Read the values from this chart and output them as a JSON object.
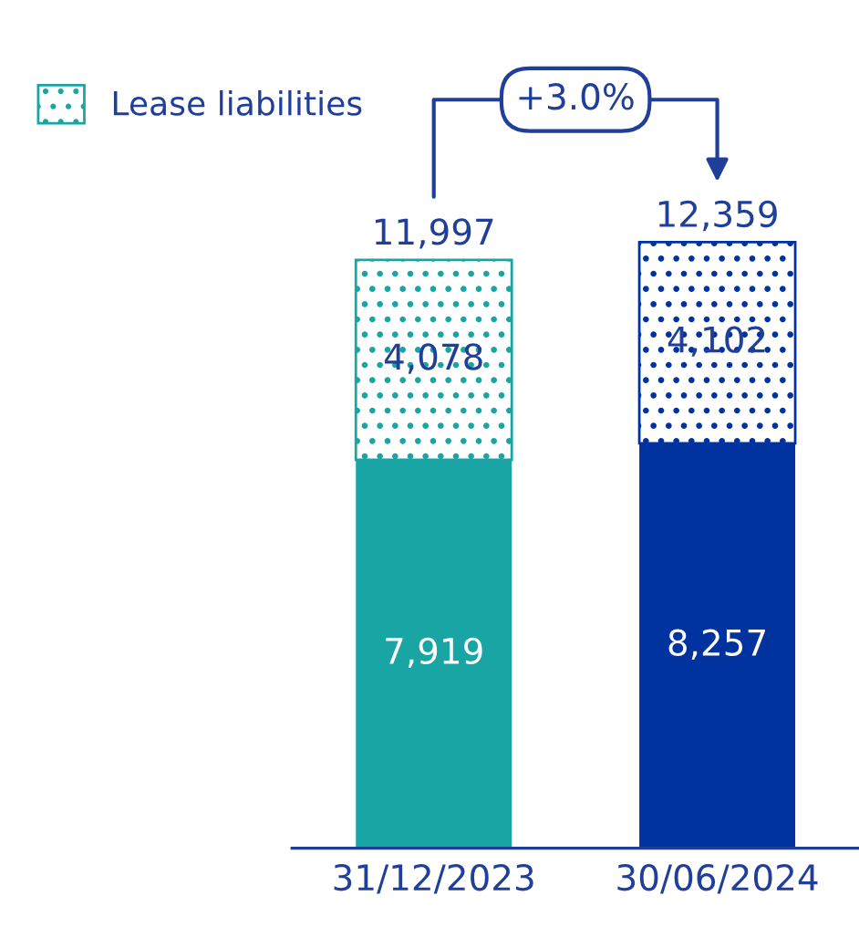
{
  "chart_data": {
    "type": "bar",
    "stacked": true,
    "categories": [
      "31/12/2023",
      "30/06/2024"
    ],
    "series": [
      {
        "colors": [
          "#1aa5a5",
          "#0033a0"
        ],
        "values": [
          7919,
          8257
        ],
        "value_labels": [
          "7,919",
          "8,257"
        ]
      },
      {
        "name": "Lease liabilities",
        "colors": [
          "#1aa5a5",
          "#0033a0"
        ],
        "values": [
          4078,
          4102
        ],
        "value_labels": [
          "4,078",
          "4,102"
        ]
      }
    ],
    "totals": [
      "11,997",
      "12,359"
    ],
    "legend": "top left",
    "annotations": [
      "+3.0%"
    ]
  }
}
